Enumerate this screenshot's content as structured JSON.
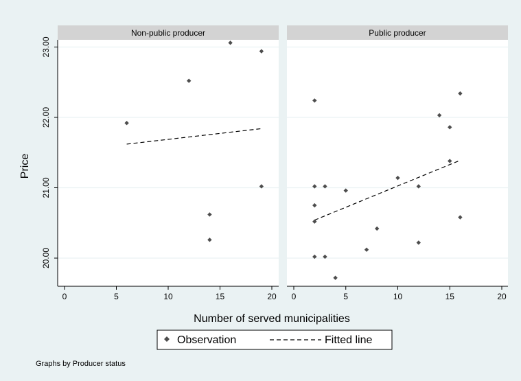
{
  "chart_data": {
    "type": "scatter",
    "by_note": "Graphs by Producer status",
    "xlabel": "Number of served municipalities",
    "ylabel": "Price",
    "xlim": [
      -1,
      21
    ],
    "ylim": [
      19.6,
      23.1
    ],
    "x_ticks": [
      0,
      5,
      10,
      15,
      20
    ],
    "y_ticks": [
      20,
      21,
      22,
      23
    ],
    "y_tick_labels": [
      "20.00",
      "21.00",
      "22.00",
      "23.00"
    ],
    "grid": "horizontal",
    "legend": {
      "position": "bottom",
      "entries": [
        {
          "label": "Observation",
          "marker": "diamond"
        },
        {
          "label": "Fitted line",
          "marker": "dashed-line"
        }
      ]
    },
    "colors": {
      "background": "#eaf2f3",
      "plot_area": "#ffffff",
      "strip": "#d3d3d3",
      "marker": "#4d4d4d",
      "fit_line": "#000000",
      "grid": "#eaf2f3"
    },
    "panels": [
      {
        "name": "Non-public producer",
        "points": [
          {
            "x": 6,
            "y": 21.92
          },
          {
            "x": 12,
            "y": 22.52
          },
          {
            "x": 14,
            "y": 20.62
          },
          {
            "x": 14,
            "y": 20.26
          },
          {
            "x": 16,
            "y": 23.06
          },
          {
            "x": 19,
            "y": 22.94
          },
          {
            "x": 19,
            "y": 21.02
          }
        ],
        "fit": [
          {
            "x": 6,
            "y": 21.62
          },
          {
            "x": 19,
            "y": 21.84
          }
        ]
      },
      {
        "name": "Public producer",
        "points": [
          {
            "x": 2,
            "y": 22.24
          },
          {
            "x": 2,
            "y": 21.02
          },
          {
            "x": 2,
            "y": 20.75
          },
          {
            "x": 2,
            "y": 20.52
          },
          {
            "x": 2,
            "y": 20.02
          },
          {
            "x": 3,
            "y": 21.02
          },
          {
            "x": 3,
            "y": 20.02
          },
          {
            "x": 4,
            "y": 19.72
          },
          {
            "x": 5,
            "y": 20.96
          },
          {
            "x": 7,
            "y": 20.12
          },
          {
            "x": 8,
            "y": 20.42
          },
          {
            "x": 10,
            "y": 21.14
          },
          {
            "x": 12,
            "y": 21.02
          },
          {
            "x": 12,
            "y": 20.22
          },
          {
            "x": 14,
            "y": 22.03
          },
          {
            "x": 15,
            "y": 21.86
          },
          {
            "x": 15,
            "y": 21.38
          },
          {
            "x": 16,
            "y": 22.34
          },
          {
            "x": 16,
            "y": 20.58
          }
        ],
        "fit": [
          {
            "x": 2,
            "y": 20.54
          },
          {
            "x": 16,
            "y": 21.39
          }
        ]
      }
    ]
  }
}
